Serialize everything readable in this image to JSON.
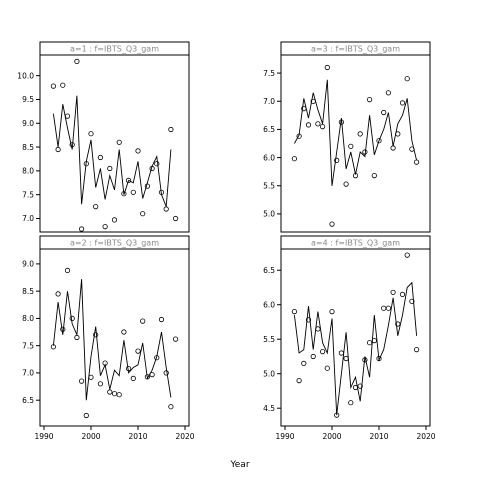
{
  "figure": {
    "xlabel": "Year"
  },
  "chart_data": [
    {
      "type": "line",
      "panel": "top-left",
      "title": "a=1  :  f=IBTS_Q3_gam",
      "xlim": [
        1990,
        2020
      ],
      "ylim": [
        6.8,
        10.35
      ],
      "xticks": [],
      "yticks": [
        7.0,
        7.5,
        8.0,
        8.5,
        9.0,
        9.5,
        10.0
      ],
      "line": {
        "x": [
          1992,
          1993,
          1994,
          1995,
          1996,
          1997,
          1998,
          1999,
          2000,
          2001,
          2002,
          2003,
          2004,
          2005,
          2006,
          2007,
          2008,
          2009,
          2010,
          2011,
          2012,
          2013,
          2014,
          2015,
          2016,
          2017
        ],
        "y": [
          9.2,
          8.5,
          9.4,
          8.9,
          8.45,
          9.58,
          7.3,
          8.2,
          8.65,
          7.65,
          8.05,
          7.4,
          7.9,
          7.6,
          8.45,
          7.5,
          7.8,
          7.75,
          8.2,
          7.42,
          7.75,
          8.1,
          8.3,
          7.5,
          7.25,
          8.45
        ]
      },
      "points": {
        "x": [
          1992,
          1993,
          1994,
          1995,
          1996,
          1997,
          1998,
          1999,
          2000,
          2001,
          2002,
          2003,
          2004,
          2005,
          2006,
          2007,
          2008,
          2009,
          2010,
          2011,
          2012,
          2013,
          2014,
          2015,
          2016,
          2017,
          2018
        ],
        "y": [
          9.78,
          8.45,
          9.8,
          9.15,
          8.55,
          10.3,
          6.78,
          8.15,
          8.78,
          7.25,
          8.28,
          6.83,
          8.05,
          6.97,
          8.6,
          7.52,
          7.8,
          7.55,
          8.42,
          7.1,
          7.68,
          8.05,
          8.15,
          7.55,
          7.2,
          8.87,
          7.0
        ]
      }
    },
    {
      "type": "line",
      "panel": "bottom-left",
      "title": "a=2  :  f=IBTS_Q3_gam",
      "xlim": [
        1990,
        2020
      ],
      "ylim": [
        6.1,
        9.2
      ],
      "xticks": [
        1990,
        2000,
        2010,
        2020
      ],
      "yticks": [
        6.5,
        7.0,
        7.5,
        8.0,
        8.5,
        9.0
      ],
      "line": {
        "x": [
          1992,
          1993,
          1994,
          1995,
          1996,
          1997,
          1998,
          1999,
          2000,
          2001,
          2002,
          2003,
          2004,
          2005,
          2006,
          2007,
          2008,
          2009,
          2010,
          2011,
          2012,
          2013,
          2014,
          2015,
          2016,
          2017
        ],
        "y": [
          7.5,
          8.3,
          7.7,
          8.5,
          7.9,
          7.7,
          8.72,
          6.5,
          7.3,
          7.85,
          6.95,
          7.15,
          6.7,
          7.05,
          6.95,
          7.6,
          7.0,
          7.1,
          7.15,
          7.55,
          6.9,
          7.05,
          7.3,
          7.75,
          7.1,
          6.55
        ]
      },
      "points": {
        "x": [
          1992,
          1993,
          1994,
          1995,
          1996,
          1997,
          1998,
          1999,
          2000,
          2001,
          2002,
          2003,
          2004,
          2005,
          2006,
          2007,
          2008,
          2009,
          2010,
          2011,
          2012,
          2013,
          2014,
          2015,
          2016,
          2017,
          2018
        ],
        "y": [
          7.48,
          8.45,
          7.8,
          8.88,
          8.0,
          7.65,
          6.85,
          6.22,
          6.92,
          7.7,
          6.8,
          7.18,
          6.65,
          6.62,
          6.6,
          7.75,
          7.08,
          6.9,
          7.4,
          7.95,
          6.93,
          6.97,
          7.28,
          7.98,
          7.0,
          6.38,
          7.62
        ]
      }
    },
    {
      "type": "line",
      "panel": "top-right",
      "title": "a=3  :  f=IBTS_Q3_gam",
      "xlim": [
        1990,
        2020
      ],
      "ylim": [
        4.75,
        7.75
      ],
      "xticks": [],
      "yticks": [
        5.0,
        5.5,
        6.0,
        6.5,
        7.0,
        7.5
      ],
      "line": {
        "x": [
          1992,
          1993,
          1994,
          1995,
          1996,
          1997,
          1998,
          1999,
          2000,
          2001,
          2002,
          2003,
          2004,
          2005,
          2006,
          2007,
          2008,
          2009,
          2010,
          2011,
          2012,
          2013,
          2014,
          2015,
          2016,
          2017,
          2018
        ],
        "y": [
          6.25,
          6.4,
          7.05,
          6.7,
          7.15,
          6.85,
          6.6,
          7.38,
          5.5,
          6.1,
          6.7,
          5.8,
          6.1,
          5.7,
          6.1,
          6.02,
          6.75,
          6.05,
          6.3,
          6.5,
          6.8,
          6.2,
          6.6,
          6.75,
          7.05,
          6.3,
          5.95
        ]
      },
      "points": {
        "x": [
          1992,
          1993,
          1994,
          1995,
          1996,
          1997,
          1998,
          1999,
          2000,
          2001,
          2002,
          2003,
          2004,
          2005,
          2006,
          2007,
          2008,
          2009,
          2010,
          2011,
          2012,
          2013,
          2014,
          2015,
          2016,
          2017,
          2018
        ],
        "y": [
          5.98,
          6.38,
          6.87,
          6.58,
          7.0,
          6.6,
          6.55,
          7.6,
          4.82,
          5.95,
          6.63,
          5.53,
          6.2,
          5.68,
          6.42,
          6.1,
          7.03,
          5.68,
          6.3,
          6.8,
          7.15,
          6.17,
          6.42,
          6.97,
          7.4,
          6.15,
          5.92
        ]
      }
    },
    {
      "type": "line",
      "panel": "bottom-right",
      "title": "a=4  :  f=IBTS_Q3_gam",
      "xlim": [
        1990,
        2020
      ],
      "ylim": [
        4.3,
        6.75
      ],
      "xticks": [
        1990,
        2000,
        2010,
        2020
      ],
      "yticks": [
        4.5,
        5.0,
        5.5,
        6.0,
        6.5
      ],
      "line": {
        "x": [
          1992,
          1993,
          1994,
          1995,
          1996,
          1997,
          1998,
          1999,
          2000,
          2001,
          2002,
          2003,
          2004,
          2005,
          2006,
          2007,
          2008,
          2009,
          2010,
          2011,
          2012,
          2013,
          2014,
          2015,
          2016,
          2017,
          2018
        ],
        "y": [
          5.85,
          5.3,
          5.35,
          5.98,
          5.35,
          5.9,
          5.45,
          5.3,
          5.8,
          4.4,
          5.0,
          5.6,
          4.8,
          4.95,
          4.6,
          5.25,
          4.95,
          5.85,
          5.2,
          5.35,
          5.7,
          6.1,
          5.55,
          5.85,
          6.25,
          6.32,
          5.55
        ]
      },
      "points": {
        "x": [
          1992,
          1993,
          1994,
          1995,
          1996,
          1997,
          1998,
          1999,
          2000,
          2001,
          2002,
          2003,
          2004,
          2005,
          2006,
          2007,
          2008,
          2009,
          2010,
          2011,
          2012,
          2013,
          2014,
          2015,
          2016,
          2017,
          2018
        ],
        "y": [
          5.9,
          4.9,
          5.15,
          5.78,
          5.25,
          5.65,
          5.32,
          5.08,
          5.9,
          4.4,
          5.3,
          5.22,
          4.58,
          4.8,
          4.82,
          5.2,
          5.45,
          5.48,
          5.22,
          5.95,
          5.95,
          6.18,
          5.72,
          6.15,
          6.72,
          6.05,
          5.35
        ]
      }
    }
  ]
}
